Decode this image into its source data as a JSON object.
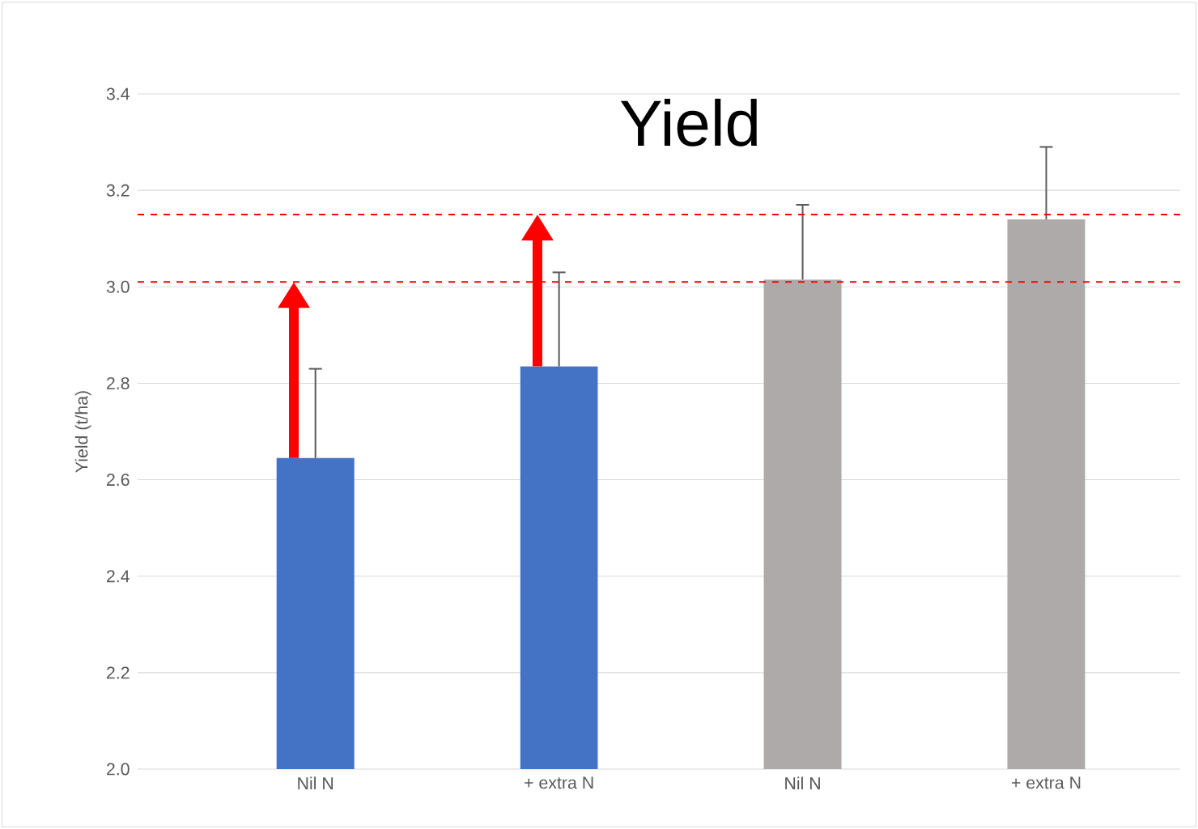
{
  "chart_data": {
    "type": "bar",
    "title": "Yield",
    "ylabel": "Yield (t/ha)",
    "categories": [
      "Nil N",
      "+ extra N",
      "Nil N",
      "+ extra N"
    ],
    "values": [
      2.645,
      2.835,
      3.015,
      3.14
    ],
    "colors": [
      "#4472c4",
      "#4472c4",
      "#aeaaaa",
      "#aeaaaa"
    ],
    "errors": [
      [
        2.645,
        2.83
      ],
      [
        2.835,
        3.03
      ],
      [
        3.015,
        3.17
      ],
      [
        3.14,
        3.29
      ]
    ],
    "ylim": [
      2.0,
      3.4
    ],
    "yticks": [
      {
        "value": 2.0,
        "label": "2.0"
      },
      {
        "value": 2.2,
        "label": "2.2"
      },
      {
        "value": 2.4,
        "label": "2.4"
      },
      {
        "value": 2.6,
        "label": "2.6"
      },
      {
        "value": 2.8,
        "label": "2.8"
      },
      {
        "value": 3.0,
        "label": "3.0"
      },
      {
        "value": 3.2,
        "label": "3.2"
      },
      {
        "value": 3.4,
        "label": "3.4"
      }
    ],
    "grid": "y",
    "ref_lines": [
      {
        "axis": "y",
        "value": 3.01,
        "color": "#ff0000",
        "line_style": "dashed"
      },
      {
        "axis": "y",
        "value": 3.15,
        "color": "#ff0000",
        "line_style": "dashed"
      }
    ]
  }
}
